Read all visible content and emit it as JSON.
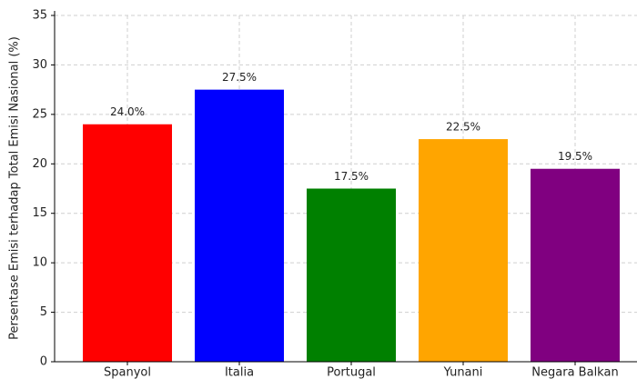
{
  "chart_data": {
    "type": "bar",
    "ylabel": "Persentase Emisi terhadap Total Emisi Nasional (%)",
    "categories": [
      "Spanyol",
      "Italia",
      "Portugal",
      "Yunani",
      "Negara Balkan"
    ],
    "values": [
      24.0,
      27.5,
      17.5,
      22.5,
      19.5
    ],
    "value_labels": [
      "24.0%",
      "27.5%",
      "17.5%",
      "22.5%",
      "19.5%"
    ],
    "colors": [
      "#ff0000",
      "#0000ff",
      "#008000",
      "#ffa500",
      "#800080"
    ],
    "ylim": [
      0,
      35
    ],
    "yticks": [
      0,
      5,
      10,
      15,
      20,
      25,
      30,
      35
    ],
    "grid": true
  }
}
